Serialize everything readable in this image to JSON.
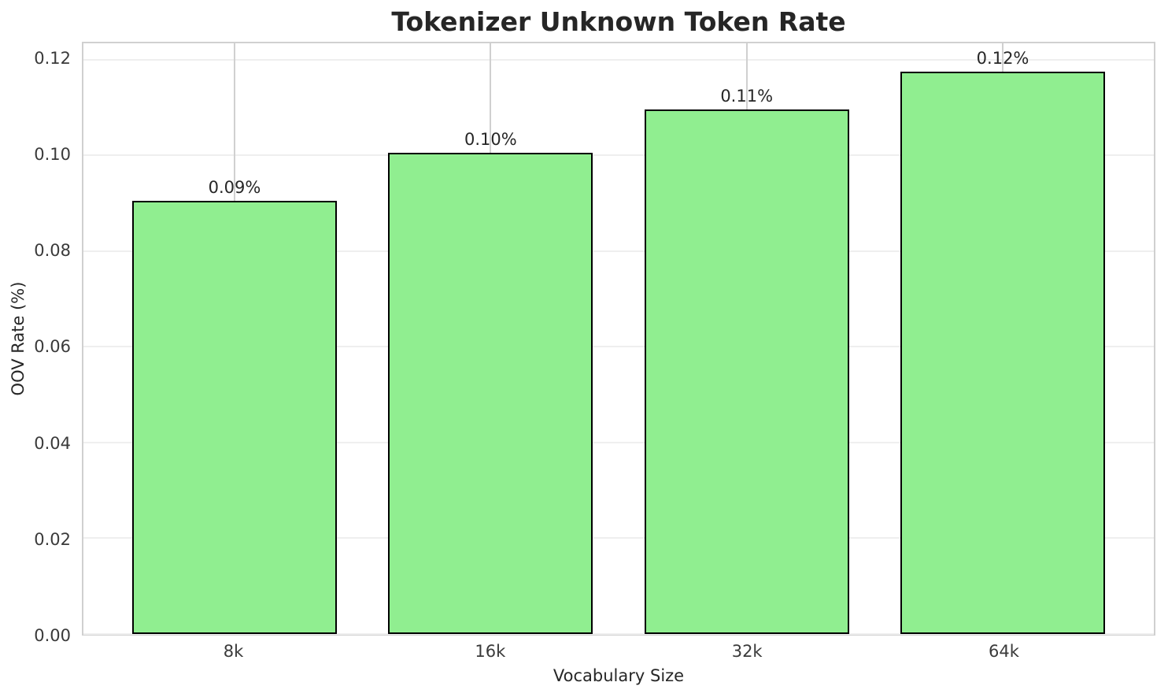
{
  "chart_data": {
    "type": "bar",
    "title": "Tokenizer Unknown Token Rate",
    "xlabel": "Vocabulary Size",
    "ylabel": "OOV Rate (%)",
    "categories": [
      "8k",
      "16k",
      "32k",
      "64k"
    ],
    "values": [
      0.0905,
      0.1005,
      0.1095,
      0.1175
    ],
    "bar_labels": [
      "0.09%",
      "0.10%",
      "0.11%",
      "0.12%"
    ],
    "ylim": [
      0,
      0.1234
    ],
    "yticks": [
      0,
      0.02,
      0.04,
      0.06,
      0.08,
      0.1,
      0.12
    ],
    "ytick_labels": [
      "0.00",
      "0.02",
      "0.04",
      "0.06",
      "0.08",
      "0.10",
      "0.12"
    ],
    "x_range": [
      -0.59,
      3.59
    ],
    "bar_width": 0.8,
    "grid": "both",
    "legend": "none",
    "colors": {
      "bar_fill": "#90EE90",
      "bar_edge": "#000000",
      "grid_horizontal": "#efefef",
      "grid_vertical": "#d0d0d0",
      "spine": "#d0d0d0",
      "text": "#262626",
      "background": "#ffffff"
    }
  }
}
